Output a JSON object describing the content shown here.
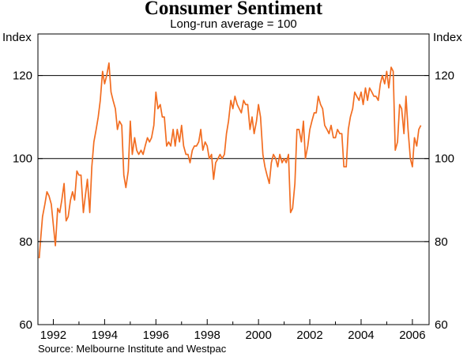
{
  "chart_data": {
    "type": "line",
    "title": "Consumer Sentiment",
    "subtitle": "Long-run average = 100",
    "ylabel_left": "Index",
    "ylabel_right": "Index",
    "source": "Source: Melbourne Institute and Westpac",
    "ylim": [
      60,
      130
    ],
    "xlim": [
      1991.4,
      2006.65
    ],
    "yticks": [
      60,
      80,
      100,
      120
    ],
    "xticks": [
      1992,
      1994,
      1996,
      1998,
      2000,
      2002,
      2004,
      2006
    ],
    "gridlines": [
      80,
      100,
      120
    ],
    "series": [
      {
        "color": "#f26d21",
        "points": [
          [
            1991.45,
            76
          ],
          [
            1991.5,
            80
          ],
          [
            1991.58,
            86
          ],
          [
            1991.67,
            89
          ],
          [
            1991.75,
            92
          ],
          [
            1991.83,
            91
          ],
          [
            1991.92,
            89
          ],
          [
            1992.0,
            84
          ],
          [
            1992.08,
            79
          ],
          [
            1992.17,
            88
          ],
          [
            1992.25,
            87
          ],
          [
            1992.33,
            90
          ],
          [
            1992.42,
            94
          ],
          [
            1992.5,
            85
          ],
          [
            1992.58,
            86
          ],
          [
            1992.67,
            90
          ],
          [
            1992.75,
            92
          ],
          [
            1992.83,
            90
          ],
          [
            1992.92,
            97
          ],
          [
            1993.0,
            96
          ],
          [
            1993.08,
            96
          ],
          [
            1993.17,
            87
          ],
          [
            1993.25,
            91
          ],
          [
            1993.33,
            95
          ],
          [
            1993.42,
            87
          ],
          [
            1993.5,
            98
          ],
          [
            1993.58,
            104
          ],
          [
            1993.67,
            107
          ],
          [
            1993.75,
            110
          ],
          [
            1993.83,
            114
          ],
          [
            1993.92,
            121
          ],
          [
            1994.0,
            118
          ],
          [
            1994.08,
            120
          ],
          [
            1994.17,
            123
          ],
          [
            1994.25,
            116
          ],
          [
            1994.33,
            114
          ],
          [
            1994.42,
            112
          ],
          [
            1994.5,
            107
          ],
          [
            1994.58,
            109
          ],
          [
            1994.67,
            108
          ],
          [
            1994.75,
            96
          ],
          [
            1994.83,
            93
          ],
          [
            1994.92,
            97
          ],
          [
            1995.0,
            109
          ],
          [
            1995.08,
            101
          ],
          [
            1995.17,
            105
          ],
          [
            1995.25,
            102
          ],
          [
            1995.33,
            101
          ],
          [
            1995.42,
            102
          ],
          [
            1995.5,
            101
          ],
          [
            1995.58,
            103
          ],
          [
            1995.67,
            105
          ],
          [
            1995.75,
            104
          ],
          [
            1995.83,
            105
          ],
          [
            1995.92,
            108
          ],
          [
            1996.0,
            116
          ],
          [
            1996.08,
            112
          ],
          [
            1996.17,
            113
          ],
          [
            1996.25,
            110
          ],
          [
            1996.33,
            110
          ],
          [
            1996.42,
            103
          ],
          [
            1996.5,
            104
          ],
          [
            1996.58,
            103
          ],
          [
            1996.67,
            107
          ],
          [
            1996.75,
            103
          ],
          [
            1996.83,
            107
          ],
          [
            1996.92,
            104
          ],
          [
            1997.0,
            108
          ],
          [
            1997.08,
            103
          ],
          [
            1997.17,
            101
          ],
          [
            1997.25,
            101
          ],
          [
            1997.33,
            99
          ],
          [
            1997.42,
            102
          ],
          [
            1997.5,
            103
          ],
          [
            1997.58,
            103
          ],
          [
            1997.67,
            104
          ],
          [
            1997.75,
            107
          ],
          [
            1997.83,
            102
          ],
          [
            1997.92,
            104
          ],
          [
            1998.0,
            103
          ],
          [
            1998.08,
            100
          ],
          [
            1998.17,
            101
          ],
          [
            1998.25,
            95
          ],
          [
            1998.33,
            99
          ],
          [
            1998.42,
            100
          ],
          [
            1998.5,
            101
          ],
          [
            1998.58,
            100
          ],
          [
            1998.67,
            101
          ],
          [
            1998.75,
            106
          ],
          [
            1998.83,
            109
          ],
          [
            1998.92,
            114
          ],
          [
            1999.0,
            112
          ],
          [
            1999.08,
            115
          ],
          [
            1999.17,
            113
          ],
          [
            1999.25,
            112
          ],
          [
            1999.33,
            111
          ],
          [
            1999.42,
            114
          ],
          [
            1999.5,
            113
          ],
          [
            1999.58,
            113
          ],
          [
            1999.67,
            107
          ],
          [
            1999.75,
            110
          ],
          [
            1999.83,
            106
          ],
          [
            1999.92,
            109
          ],
          [
            2000.0,
            113
          ],
          [
            2000.08,
            110
          ],
          [
            2000.17,
            101
          ],
          [
            2000.25,
            98
          ],
          [
            2000.33,
            96
          ],
          [
            2000.42,
            94
          ],
          [
            2000.5,
            99
          ],
          [
            2000.58,
            101
          ],
          [
            2000.67,
            100
          ],
          [
            2000.75,
            98
          ],
          [
            2000.83,
            101
          ],
          [
            2000.92,
            99
          ],
          [
            2001.0,
            100
          ],
          [
            2001.08,
            99
          ],
          [
            2001.17,
            101
          ],
          [
            2001.25,
            87
          ],
          [
            2001.33,
            88
          ],
          [
            2001.42,
            94
          ],
          [
            2001.5,
            107
          ],
          [
            2001.58,
            107
          ],
          [
            2001.67,
            104
          ],
          [
            2001.75,
            109
          ],
          [
            2001.83,
            100
          ],
          [
            2001.92,
            103
          ],
          [
            2002.0,
            107
          ],
          [
            2002.08,
            109
          ],
          [
            2002.17,
            111
          ],
          [
            2002.25,
            111
          ],
          [
            2002.33,
            115
          ],
          [
            2002.42,
            113
          ],
          [
            2002.5,
            112
          ],
          [
            2002.58,
            108
          ],
          [
            2002.67,
            107
          ],
          [
            2002.75,
            106
          ],
          [
            2002.83,
            108
          ],
          [
            2002.92,
            105
          ],
          [
            2003.0,
            105
          ],
          [
            2003.08,
            107
          ],
          [
            2003.17,
            106
          ],
          [
            2003.25,
            106
          ],
          [
            2003.33,
            98
          ],
          [
            2003.42,
            98
          ],
          [
            2003.5,
            107
          ],
          [
            2003.58,
            110
          ],
          [
            2003.67,
            112
          ],
          [
            2003.75,
            116
          ],
          [
            2003.83,
            115
          ],
          [
            2003.92,
            114
          ],
          [
            2004.0,
            116
          ],
          [
            2004.08,
            113
          ],
          [
            2004.17,
            117
          ],
          [
            2004.25,
            114
          ],
          [
            2004.33,
            117
          ],
          [
            2004.42,
            116
          ],
          [
            2004.5,
            115
          ],
          [
            2004.58,
            115
          ],
          [
            2004.67,
            114
          ],
          [
            2004.75,
            118
          ],
          [
            2004.83,
            120
          ],
          [
            2004.92,
            118
          ],
          [
            2005.0,
            121
          ],
          [
            2005.08,
            117
          ],
          [
            2005.17,
            122
          ],
          [
            2005.25,
            121
          ],
          [
            2005.33,
            102
          ],
          [
            2005.42,
            104
          ],
          [
            2005.5,
            113
          ],
          [
            2005.58,
            112
          ],
          [
            2005.67,
            106
          ],
          [
            2005.75,
            115
          ],
          [
            2005.83,
            107
          ],
          [
            2005.92,
            100
          ],
          [
            2006.0,
            98
          ],
          [
            2006.08,
            105
          ],
          [
            2006.17,
            103
          ],
          [
            2006.25,
            107
          ],
          [
            2006.33,
            108
          ]
        ]
      }
    ]
  }
}
